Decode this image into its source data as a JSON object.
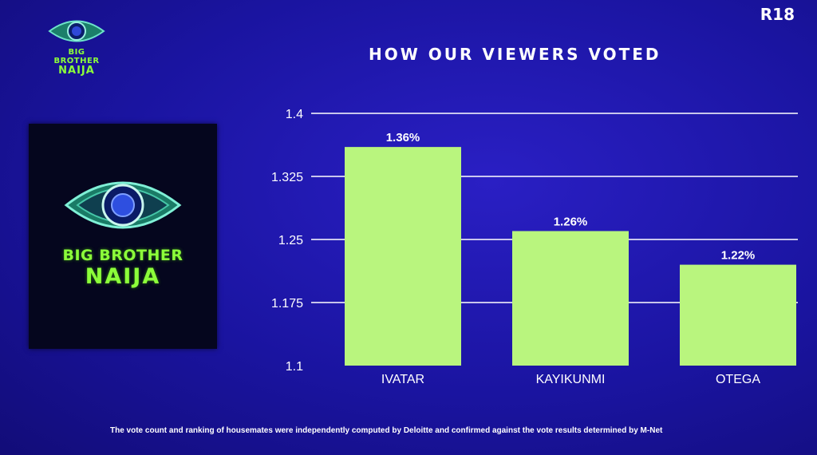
{
  "rating_badge": "R18",
  "logo": {
    "line1": "BIG BROTHER",
    "line2": "NAIJA"
  },
  "footnote": "The vote count and ranking of housemates were independently computed by Deloitte and confirmed against the vote results determined by M-Net",
  "colors": {
    "background": "#1a14a0",
    "bar": "#b9f57e",
    "gridline": "#ffffff",
    "logo_green": "#8cff3a"
  },
  "chart_data": {
    "type": "bar",
    "title": "HOW OUR VIEWERS VOTED",
    "categories": [
      "IVATAR",
      "KAYIKUNMI",
      "OTEGA"
    ],
    "values": [
      1.36,
      1.26,
      1.22
    ],
    "data_labels": [
      "1.36%",
      "1.26%",
      "1.22%"
    ],
    "y_ticks": [
      1.1,
      1.175,
      1.25,
      1.325,
      1.4
    ],
    "y_tick_labels": [
      "1.1",
      "1.175",
      "1.25",
      "1.325",
      "1.4"
    ],
    "ylim": [
      1.1,
      1.4
    ],
    "xlabel": "",
    "ylabel": "",
    "grid": true,
    "legend": "none"
  }
}
